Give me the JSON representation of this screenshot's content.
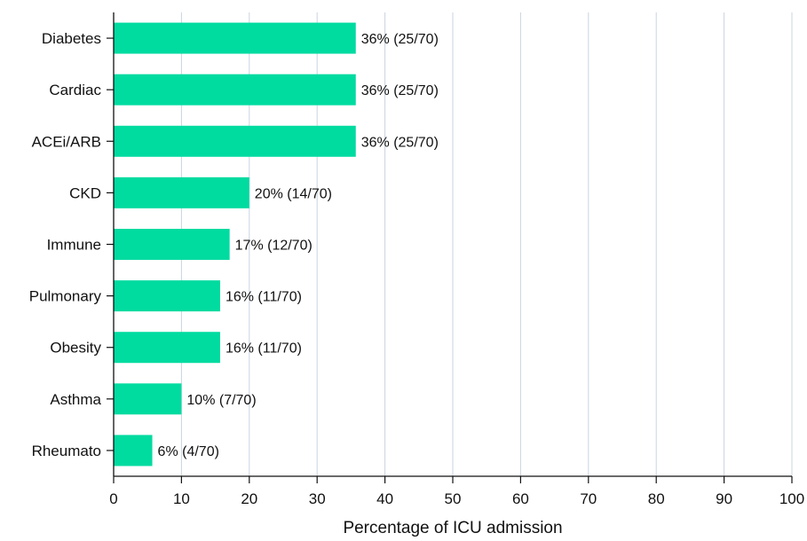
{
  "chart_data": {
    "type": "bar",
    "orientation": "horizontal",
    "categories": [
      "Diabetes",
      "Cardiac",
      "ACEi/ARB",
      "CKD",
      "Immune",
      "Pulmonary",
      "Obesity",
      "Asthma",
      "Rheumato"
    ],
    "values": [
      35.7,
      35.7,
      35.7,
      20,
      17.1,
      15.7,
      15.7,
      10,
      5.7
    ],
    "data_labels": [
      "36% (25/70)",
      "36% (25/70)",
      "36% (25/70)",
      "20% (14/70)",
      "17% (12/70)",
      "16% (11/70)",
      "16% (11/70)",
      "10% (7/70)",
      "6% (4/70)"
    ],
    "xlabel": "Percentage of ICU admission",
    "ylabel": "",
    "xlim": [
      0,
      100
    ],
    "xticks": [
      0,
      10,
      20,
      30,
      40,
      50,
      60,
      70,
      80,
      90,
      100
    ],
    "grid": "vertical",
    "legend": "none",
    "colors": {
      "bar": "#00dba0",
      "grid": "#c9d4e0",
      "axis": "#111111",
      "text": "#111111"
    }
  }
}
